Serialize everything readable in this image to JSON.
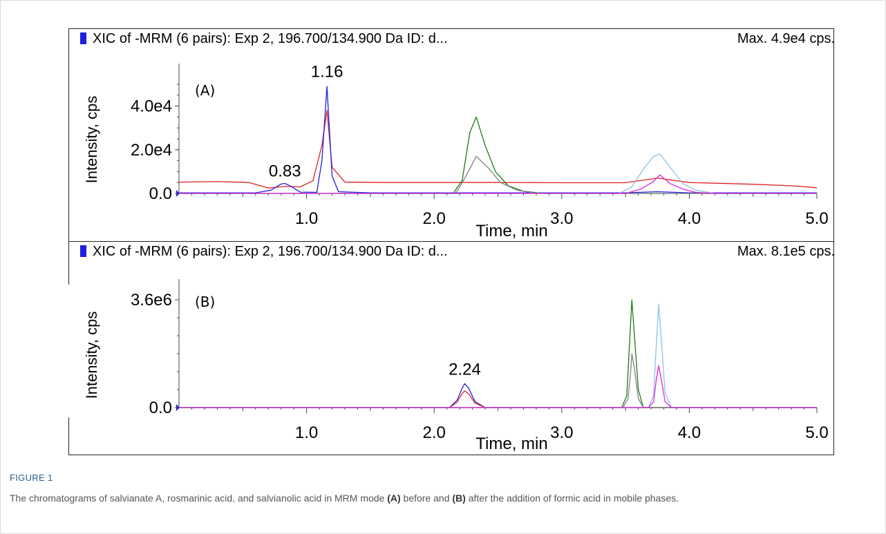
{
  "figure": {
    "label": "FIGURE 1",
    "caption_parts": [
      {
        "text": "The chromatograms of salvianate A, rosmarinic acid, and salvianolic acid in MRM mode ",
        "bold": false
      },
      {
        "text": "(A)",
        "bold": true
      },
      {
        "text": " before and ",
        "bold": false
      },
      {
        "text": "(B)",
        "bold": true
      },
      {
        "text": " after the addition of formic acid in mobile phases.",
        "bold": false
      }
    ]
  },
  "colors": {
    "blue": "#1f1fe0",
    "red": "#e02020",
    "green": "#1a7a1a",
    "gray": "#808080",
    "lightblue": "#8cc0e8",
    "magenta": "#e020e0"
  },
  "chart_data": [
    {
      "type": "line",
      "panel_label": "(A)",
      "header": "XIC of -MRM (6 pairs): Exp 2, 196.700/134.900 Da ID: d...",
      "max_label": "Max. 4.9e4 cps.",
      "xlabel": "Time, min",
      "ylabel": "Intensity, cps",
      "xlim": [
        0,
        5.0
      ],
      "ylim": [
        0,
        50000
      ],
      "x_ticks": [
        1.0,
        2.0,
        3.0,
        4.0,
        5.0
      ],
      "x_tick_labels": [
        "1.0",
        "2.0",
        "3.0",
        "4.0",
        "5.0"
      ],
      "y_ticks": [
        0,
        20000,
        40000
      ],
      "y_tick_labels": [
        "0.0",
        "2.0e4",
        "4.0e4"
      ],
      "annotations": [
        {
          "text": "1.16",
          "x": 1.16,
          "y": 52000
        },
        {
          "text": "0.83",
          "x": 0.83,
          "y": 6500
        }
      ],
      "series": [
        {
          "color_key": "red",
          "x": [
            0.0,
            0.3,
            0.55,
            0.7,
            0.83,
            0.95,
            1.05,
            1.12,
            1.16,
            1.2,
            1.3,
            1.6,
            2.0,
            2.5,
            3.0,
            3.5,
            3.75,
            4.0,
            4.5,
            4.8,
            5.0
          ],
          "y": [
            5200,
            5400,
            5000,
            2500,
            3200,
            3000,
            5800,
            22000,
            38000,
            12000,
            5200,
            5000,
            5000,
            5000,
            4900,
            4900,
            7000,
            5000,
            4200,
            3500,
            2600
          ]
        },
        {
          "color_key": "blue",
          "x": [
            0.0,
            0.6,
            0.72,
            0.8,
            0.83,
            0.88,
            0.95,
            1.08,
            1.12,
            1.16,
            1.2,
            1.25,
            1.5,
            3.5,
            3.75,
            4.0,
            5.0
          ],
          "y": [
            300,
            300,
            1500,
            4300,
            4600,
            3200,
            600,
            500,
            15000,
            49000,
            8000,
            800,
            300,
            300,
            800,
            300,
            300
          ]
        },
        {
          "color_key": "green",
          "x": [
            0.0,
            2.15,
            2.22,
            2.28,
            2.33,
            2.4,
            2.48,
            2.58,
            2.7,
            2.85,
            5.0
          ],
          "y": [
            0,
            0,
            6000,
            28000,
            35000,
            22000,
            10000,
            3500,
            1000,
            0,
            0
          ]
        },
        {
          "color_key": "gray",
          "x": [
            0.0,
            2.17,
            2.25,
            2.33,
            2.42,
            2.52,
            2.65,
            2.8,
            5.0
          ],
          "y": [
            0,
            0,
            8000,
            17000,
            12000,
            5000,
            1500,
            0,
            0
          ]
        },
        {
          "color_key": "lightblue",
          "x": [
            0.0,
            3.45,
            3.55,
            3.65,
            3.72,
            3.77,
            3.85,
            3.95,
            4.05,
            4.2,
            5.0
          ],
          "y": [
            0,
            0,
            3000,
            12000,
            17000,
            18000,
            12000,
            4500,
            1500,
            0,
            0
          ]
        },
        {
          "color_key": "magenta",
          "x": [
            0.0,
            3.5,
            3.62,
            3.72,
            3.77,
            3.85,
            3.95,
            4.05,
            4.2,
            5.0
          ],
          "y": [
            0,
            0,
            2000,
            5500,
            8500,
            4500,
            2000,
            500,
            0,
            0
          ]
        }
      ]
    },
    {
      "type": "line",
      "panel_label": "(B)",
      "header": "XIC of -MRM (6 pairs): Exp 2, 196.700/134.900 Da ID: d...",
      "max_label": "Max. 8.1e5 cps.",
      "xlabel": "Time, min",
      "ylabel": "Intensity, cps",
      "xlim": [
        0,
        5.0
      ],
      "ylim": [
        0,
        3600000
      ],
      "x_ticks": [
        1.0,
        2.0,
        3.0,
        4.0,
        5.0
      ],
      "x_tick_labels": [
        "1.0",
        "2.0",
        "3.0",
        "4.0",
        "5.0"
      ],
      "y_ticks": [
        0,
        3600000
      ],
      "y_tick_labels": [
        "0.0",
        "3.6e6"
      ],
      "annotations": [
        {
          "text": "2.24",
          "x": 2.24,
          "y": 1000000
        }
      ],
      "series": [
        {
          "color_key": "blue",
          "x": [
            0.0,
            2.12,
            2.18,
            2.22,
            2.24,
            2.27,
            2.32,
            2.4,
            5.0
          ],
          "y": [
            0,
            0,
            250000,
            650000,
            800000,
            650000,
            200000,
            0,
            0
          ]
        },
        {
          "color_key": "red",
          "x": [
            0.0,
            2.12,
            2.18,
            2.22,
            2.24,
            2.27,
            2.32,
            2.4,
            5.0
          ],
          "y": [
            0,
            0,
            180000,
            470000,
            560000,
            460000,
            150000,
            0,
            0
          ]
        },
        {
          "color_key": "green",
          "x": [
            0.0,
            3.47,
            3.51,
            3.53,
            3.55,
            3.57,
            3.6,
            3.64,
            5.0
          ],
          "y": [
            0,
            0,
            400000,
            2000000,
            3600000,
            2400000,
            600000,
            0,
            0
          ]
        },
        {
          "color_key": "gray",
          "x": [
            0.0,
            3.48,
            3.52,
            3.54,
            3.55,
            3.57,
            3.6,
            3.64,
            5.0
          ],
          "y": [
            0,
            0,
            300000,
            1200000,
            1800000,
            1300000,
            300000,
            0,
            0
          ]
        },
        {
          "color_key": "lightblue",
          "x": [
            0.0,
            3.68,
            3.72,
            3.74,
            3.76,
            3.78,
            3.81,
            3.86,
            5.0
          ],
          "y": [
            0,
            0,
            400000,
            2000000,
            3450000,
            2300000,
            500000,
            0,
            0
          ]
        },
        {
          "color_key": "magenta",
          "x": [
            0.0,
            3.68,
            3.72,
            3.74,
            3.76,
            3.78,
            3.81,
            3.86,
            5.0
          ],
          "y": [
            0,
            0,
            200000,
            900000,
            1400000,
            950000,
            200000,
            0,
            0
          ]
        }
      ]
    }
  ]
}
